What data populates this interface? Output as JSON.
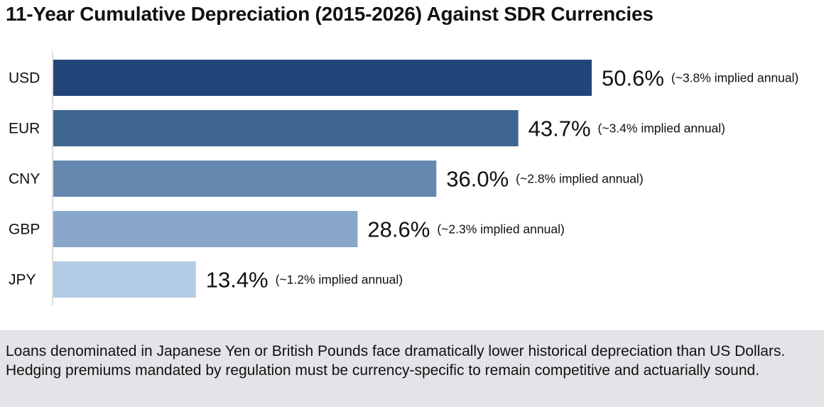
{
  "chart_data": {
    "type": "bar",
    "orientation": "horizontal",
    "title": "11-Year Cumulative Depreciation (2015-2026) Against SDR Currencies",
    "xlabel": "",
    "ylabel": "",
    "categories": [
      "USD",
      "EUR",
      "CNY",
      "GBP",
      "JPY"
    ],
    "values": [
      50.6,
      43.7,
      36.0,
      28.6,
      13.4
    ],
    "value_labels": [
      "50.6%",
      "43.7%",
      "36.0%",
      "28.6%",
      "13.4%"
    ],
    "annotations": [
      "(~3.8% implied annual)",
      "(~3.4% implied annual)",
      "(~2.8% implied annual)",
      "(~2.3% implied annual)",
      "(~1.2% implied annual)"
    ],
    "colors": [
      "#23467a",
      "#3f6590",
      "#6688b0",
      "#89a7ca",
      "#b3cbe4"
    ],
    "xlim": [
      0,
      52
    ],
    "grid": false
  },
  "footer": {
    "text": "Loans denominated in Japanese Yen or British Pounds face dramatically lower historical depreciation than US Dollars. Hedging premiums mandated by regulation must be currency-specific to remain competitive and actuarially sound."
  }
}
